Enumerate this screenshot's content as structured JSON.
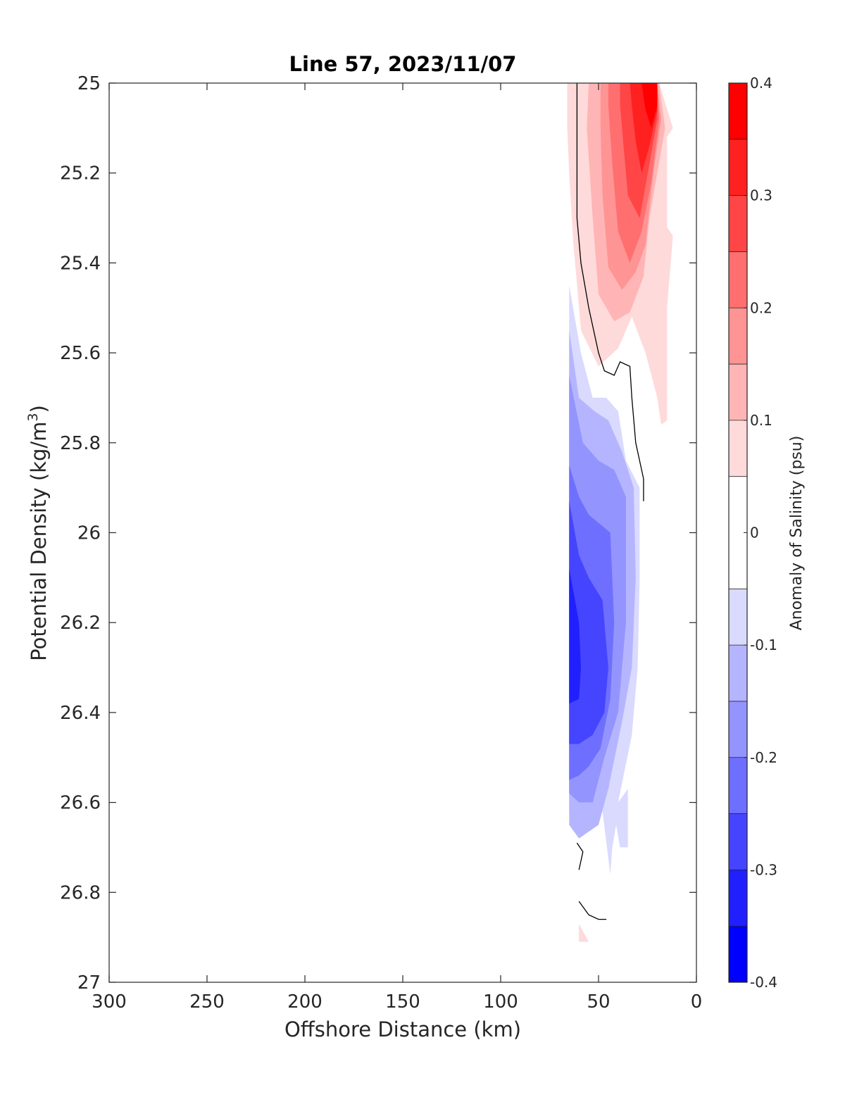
{
  "chart_data": {
    "type": "contour",
    "title": "Line 57, 2023/11/07",
    "xlabel": "Offshore Distance (km)",
    "ylabel_main": "Potential Density (kg/m",
    "ylabel_sup": "3",
    "ylabel_end": ")",
    "xlim": [
      300,
      0
    ],
    "ylim": [
      25,
      27
    ],
    "x_reversed": true,
    "y_reversed": true,
    "x_ticks": [
      300,
      250,
      200,
      150,
      100,
      50,
      0
    ],
    "x_tick_labels": [
      "300",
      "250",
      "200",
      "150",
      "100",
      "50",
      "0"
    ],
    "y_ticks": [
      25,
      25.2,
      25.4,
      25.6,
      25.8,
      26,
      26.2,
      26.4,
      26.6,
      26.8,
      27
    ],
    "y_tick_labels": [
      "25",
      "25.2",
      "25.4",
      "25.6",
      "25.8",
      "26",
      "26.2",
      "26.4",
      "26.6",
      "26.8",
      "27"
    ],
    "grid": false,
    "colorbar": {
      "label": "Anomaly of Salinity (psu)",
      "limits": [
        -0.4,
        0.4
      ],
      "tick_values": [
        0.4,
        0.3,
        0.2,
        0.1,
        0,
        -0.1,
        -0.2,
        -0.3,
        -0.4
      ],
      "tick_labels": [
        "0.4",
        "0.3",
        "0.2",
        "0.1",
        "0",
        "-0.1",
        "-0.2",
        "-0.3",
        "-0.4"
      ],
      "levels": [
        -0.4,
        -0.35,
        -0.3,
        -0.25,
        -0.2,
        -0.15,
        -0.1,
        -0.05,
        0.05,
        0.1,
        0.15,
        0.2,
        0.25,
        0.3,
        0.35,
        0.4
      ],
      "colors": [
        "#0000ff",
        "#2020ff",
        "#4545ff",
        "#6f6fff",
        "#9494ff",
        "#b5b5ff",
        "#dadaff",
        "#ffffff",
        "#ffdada",
        "#ffb5b5",
        "#ff9494",
        "#ff6f6f",
        "#ff4545",
        "#ff2020",
        "#ff0000"
      ]
    },
    "contour_regions": [
      {
        "level": 0.05,
        "color": "#ffdada",
        "points": [
          [
            66,
            25.0
          ],
          [
            19,
            25.0
          ],
          [
            12,
            25.1
          ],
          [
            15,
            25.12
          ],
          [
            15,
            25.32
          ],
          [
            12,
            25.34
          ],
          [
            15,
            25.5
          ],
          [
            15,
            25.75
          ],
          [
            18,
            25.76
          ],
          [
            20,
            25.7
          ],
          [
            26,
            25.6
          ],
          [
            33,
            25.52
          ],
          [
            40,
            25.59
          ],
          [
            50,
            25.63
          ],
          [
            59,
            25.55
          ],
          [
            63,
            25.35
          ],
          [
            65,
            25.2
          ],
          [
            66,
            25.1
          ]
        ]
      },
      {
        "level": 0.1,
        "color": "#ffb5b5",
        "points": [
          [
            55,
            25.0
          ],
          [
            19,
            25.0
          ],
          [
            16,
            25.1
          ],
          [
            24,
            25.3
          ],
          [
            27,
            25.43
          ],
          [
            34,
            25.51
          ],
          [
            42,
            25.53
          ],
          [
            50,
            25.47
          ],
          [
            53,
            25.3
          ],
          [
            56,
            25.1
          ]
        ]
      },
      {
        "level": 0.15,
        "color": "#ff9494",
        "points": [
          [
            49,
            25.0
          ],
          [
            20,
            25.0
          ],
          [
            18,
            25.08
          ],
          [
            22,
            25.2
          ],
          [
            26,
            25.36
          ],
          [
            31,
            25.42
          ],
          [
            38,
            25.46
          ],
          [
            45,
            25.41
          ],
          [
            48,
            25.25
          ],
          [
            49,
            25.1
          ]
        ]
      },
      {
        "level": 0.2,
        "color": "#ff6f6f",
        "points": [
          [
            45,
            25.0
          ],
          [
            20,
            25.0
          ],
          [
            19,
            25.08
          ],
          [
            23,
            25.22
          ],
          [
            28,
            25.33
          ],
          [
            34,
            25.4
          ],
          [
            40,
            25.33
          ],
          [
            43,
            25.18
          ],
          [
            45,
            25.05
          ]
        ]
      },
      {
        "level": 0.25,
        "color": "#ff4545",
        "points": [
          [
            39,
            25.0
          ],
          [
            20,
            25.0
          ],
          [
            20,
            25.08
          ],
          [
            24,
            25.18
          ],
          [
            29,
            25.3
          ],
          [
            35,
            25.25
          ],
          [
            37,
            25.15
          ],
          [
            39,
            25.05
          ]
        ]
      },
      {
        "level": 0.3,
        "color": "#ff2020",
        "points": [
          [
            34,
            25.0
          ],
          [
            20,
            25.0
          ],
          [
            20,
            25.06
          ],
          [
            24,
            25.14
          ],
          [
            28,
            25.2
          ],
          [
            31,
            25.13
          ],
          [
            33,
            25.05
          ]
        ]
      },
      {
        "level": 0.35,
        "color": "#ff0000",
        "points": [
          [
            28,
            25.0
          ],
          [
            20,
            25.0
          ],
          [
            20,
            25.05
          ],
          [
            23,
            25.1
          ],
          [
            26,
            25.06
          ]
        ]
      },
      {
        "level": -0.05,
        "color": "#dadaff",
        "points": [
          [
            65,
            25.45
          ],
          [
            59,
            25.6
          ],
          [
            53,
            25.7
          ],
          [
            46,
            25.7
          ],
          [
            40,
            25.73
          ],
          [
            36,
            25.84
          ],
          [
            29,
            25.9
          ],
          [
            29,
            26.1
          ],
          [
            30,
            26.3
          ],
          [
            33,
            26.45
          ],
          [
            40,
            26.6
          ],
          [
            35,
            26.57
          ],
          [
            35,
            26.7
          ],
          [
            39,
            26.7
          ],
          [
            41,
            26.65
          ],
          [
            43,
            26.7
          ],
          [
            44,
            26.76
          ],
          [
            48,
            26.62
          ],
          [
            60,
            26.52
          ],
          [
            65,
            26.62
          ],
          [
            65,
            26.2
          ]
        ]
      },
      {
        "level": -0.1,
        "color": "#b5b5ff",
        "points": [
          [
            65,
            25.55
          ],
          [
            60,
            25.7
          ],
          [
            52,
            25.73
          ],
          [
            45,
            25.75
          ],
          [
            38,
            25.82
          ],
          [
            32,
            25.9
          ],
          [
            31,
            26.1
          ],
          [
            33,
            26.3
          ],
          [
            38,
            26.42
          ],
          [
            45,
            26.57
          ],
          [
            50,
            26.65
          ],
          [
            60,
            26.68
          ],
          [
            65,
            26.65
          ],
          [
            65,
            26.2
          ]
        ]
      },
      {
        "level": -0.15,
        "color": "#9494ff",
        "points": [
          [
            65,
            25.65
          ],
          [
            58,
            25.8
          ],
          [
            50,
            25.84
          ],
          [
            42,
            25.86
          ],
          [
            36,
            25.92
          ],
          [
            36,
            26.2
          ],
          [
            40,
            26.4
          ],
          [
            47,
            26.5
          ],
          [
            53,
            26.6
          ],
          [
            60,
            26.6
          ],
          [
            65,
            26.58
          ],
          [
            65,
            26.2
          ]
        ]
      },
      {
        "level": -0.2,
        "color": "#6f6fff",
        "points": [
          [
            65,
            25.85
          ],
          [
            60,
            25.92
          ],
          [
            55,
            25.96
          ],
          [
            44,
            26.0
          ],
          [
            42,
            26.2
          ],
          [
            44,
            26.37
          ],
          [
            49,
            26.48
          ],
          [
            55,
            26.52
          ],
          [
            60,
            26.54
          ],
          [
            65,
            26.55
          ],
          [
            65,
            26.2
          ]
        ]
      },
      {
        "level": -0.25,
        "color": "#4545ff",
        "points": [
          [
            65,
            25.93
          ],
          [
            60,
            26.05
          ],
          [
            55,
            26.1
          ],
          [
            48,
            26.15
          ],
          [
            45,
            26.3
          ],
          [
            47,
            26.4
          ],
          [
            53,
            26.45
          ],
          [
            60,
            26.47
          ],
          [
            65,
            26.47
          ],
          [
            65,
            26.2
          ]
        ]
      },
      {
        "level": -0.3,
        "color": "#2020ff",
        "points": [
          [
            65,
            26.08
          ],
          [
            62,
            26.15
          ],
          [
            60,
            26.2
          ],
          [
            59,
            26.3
          ],
          [
            60,
            26.37
          ],
          [
            65,
            26.38
          ]
        ]
      },
      {
        "level": 0.05,
        "color": "#ffdada",
        "points": [
          [
            60,
            26.87
          ],
          [
            55,
            26.91
          ],
          [
            60,
            26.91
          ]
        ]
      }
    ],
    "zero_contour_lines": [
      [
        [
          61,
          25.0
        ],
        [
          61,
          25.1
        ],
        [
          61,
          25.3
        ],
        [
          59,
          25.4
        ],
        [
          55,
          25.5
        ],
        [
          50,
          25.6
        ],
        [
          47,
          25.64
        ],
        [
          42,
          25.65
        ],
        [
          39,
          25.62
        ],
        [
          34,
          25.63
        ],
        [
          33,
          25.7
        ],
        [
          31,
          25.8
        ],
        [
          27,
          25.88
        ],
        [
          27,
          25.93
        ]
      ],
      [
        [
          61,
          26.69
        ],
        [
          58,
          26.71
        ],
        [
          60,
          26.75
        ]
      ],
      [
        [
          60,
          26.82
        ],
        [
          55,
          26.85
        ],
        [
          50,
          26.86
        ],
        [
          46,
          26.86
        ]
      ]
    ]
  }
}
